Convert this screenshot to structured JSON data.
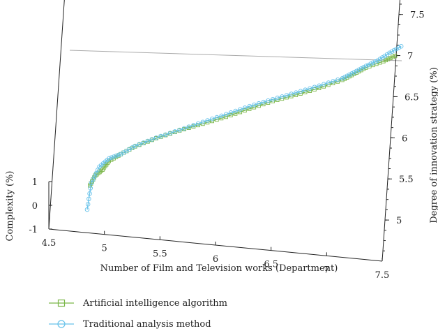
{
  "chart_data": {
    "type": "line",
    "projection": "3d",
    "title": "",
    "xlabel": "Number of Film and Television works (Department)",
    "ylabel": "Degree of innovation strategy (%)",
    "zlabel": "Complexity (%)",
    "xlim": [
      4.5,
      7.5
    ],
    "ylim": [
      4.5,
      8
    ],
    "zlim": [
      -1,
      1
    ],
    "x_ticks": [
      "4.5",
      "5",
      "5.5",
      "6",
      "6.5",
      "7",
      "7.5"
    ],
    "y_ticks": [
      "5",
      "5.5",
      "6",
      "6.5",
      "7",
      "7.5"
    ],
    "z_ticks": [
      "-1",
      "0",
      "1"
    ],
    "grid": false,
    "legend_position": "bottom-left",
    "colors": {
      "artificial": "#7ab648",
      "traditional": "#67c2ea",
      "axis": "#222222",
      "box": "#aaaaaa"
    },
    "series": [
      {
        "name": "Artificial intelligence algorithm",
        "marker": "square",
        "points": [
          [
            4.85,
            4.9,
            0.1
          ],
          [
            4.89,
            5.05,
            0.2
          ],
          [
            4.95,
            5.15,
            0.25
          ],
          [
            5.0,
            5.3,
            0.3
          ],
          [
            5.1,
            5.45,
            0.3
          ],
          [
            5.22,
            5.62,
            0.3
          ],
          [
            5.4,
            5.82,
            0.28
          ],
          [
            5.6,
            6.02,
            0.25
          ],
          [
            5.8,
            6.2,
            0.22
          ],
          [
            6.0,
            6.38,
            0.2
          ],
          [
            6.2,
            6.58,
            0.18
          ],
          [
            6.4,
            6.78,
            0.15
          ],
          [
            6.6,
            6.95,
            0.12
          ],
          [
            6.8,
            7.12,
            0.12
          ],
          [
            7.0,
            7.3,
            0.15
          ],
          [
            7.1,
            7.42,
            0.18
          ],
          [
            7.2,
            7.55,
            0.2
          ],
          [
            7.35,
            7.7,
            0.2
          ],
          [
            7.45,
            7.8,
            0.25
          ]
        ]
      },
      {
        "name": "Traditional analysis method",
        "marker": "circle",
        "points": [
          [
            4.84,
            4.6,
            -0.25
          ],
          [
            4.86,
            4.95,
            0.1
          ],
          [
            4.92,
            5.2,
            0.25
          ],
          [
            5.0,
            5.35,
            0.3
          ],
          [
            5.1,
            5.45,
            0.3
          ],
          [
            5.22,
            5.62,
            0.32
          ],
          [
            5.4,
            5.82,
            0.3
          ],
          [
            5.6,
            6.02,
            0.27
          ],
          [
            5.8,
            6.22,
            0.25
          ],
          [
            6.0,
            6.42,
            0.22
          ],
          [
            6.2,
            6.62,
            0.2
          ],
          [
            6.4,
            6.8,
            0.18
          ],
          [
            6.6,
            6.98,
            0.15
          ],
          [
            6.8,
            7.15,
            0.15
          ],
          [
            7.0,
            7.33,
            0.15
          ],
          [
            7.1,
            7.45,
            0.18
          ],
          [
            7.2,
            7.58,
            0.2
          ],
          [
            7.3,
            7.68,
            0.25
          ],
          [
            7.4,
            7.8,
            0.35
          ],
          [
            7.5,
            7.9,
            0.45
          ]
        ]
      }
    ]
  }
}
